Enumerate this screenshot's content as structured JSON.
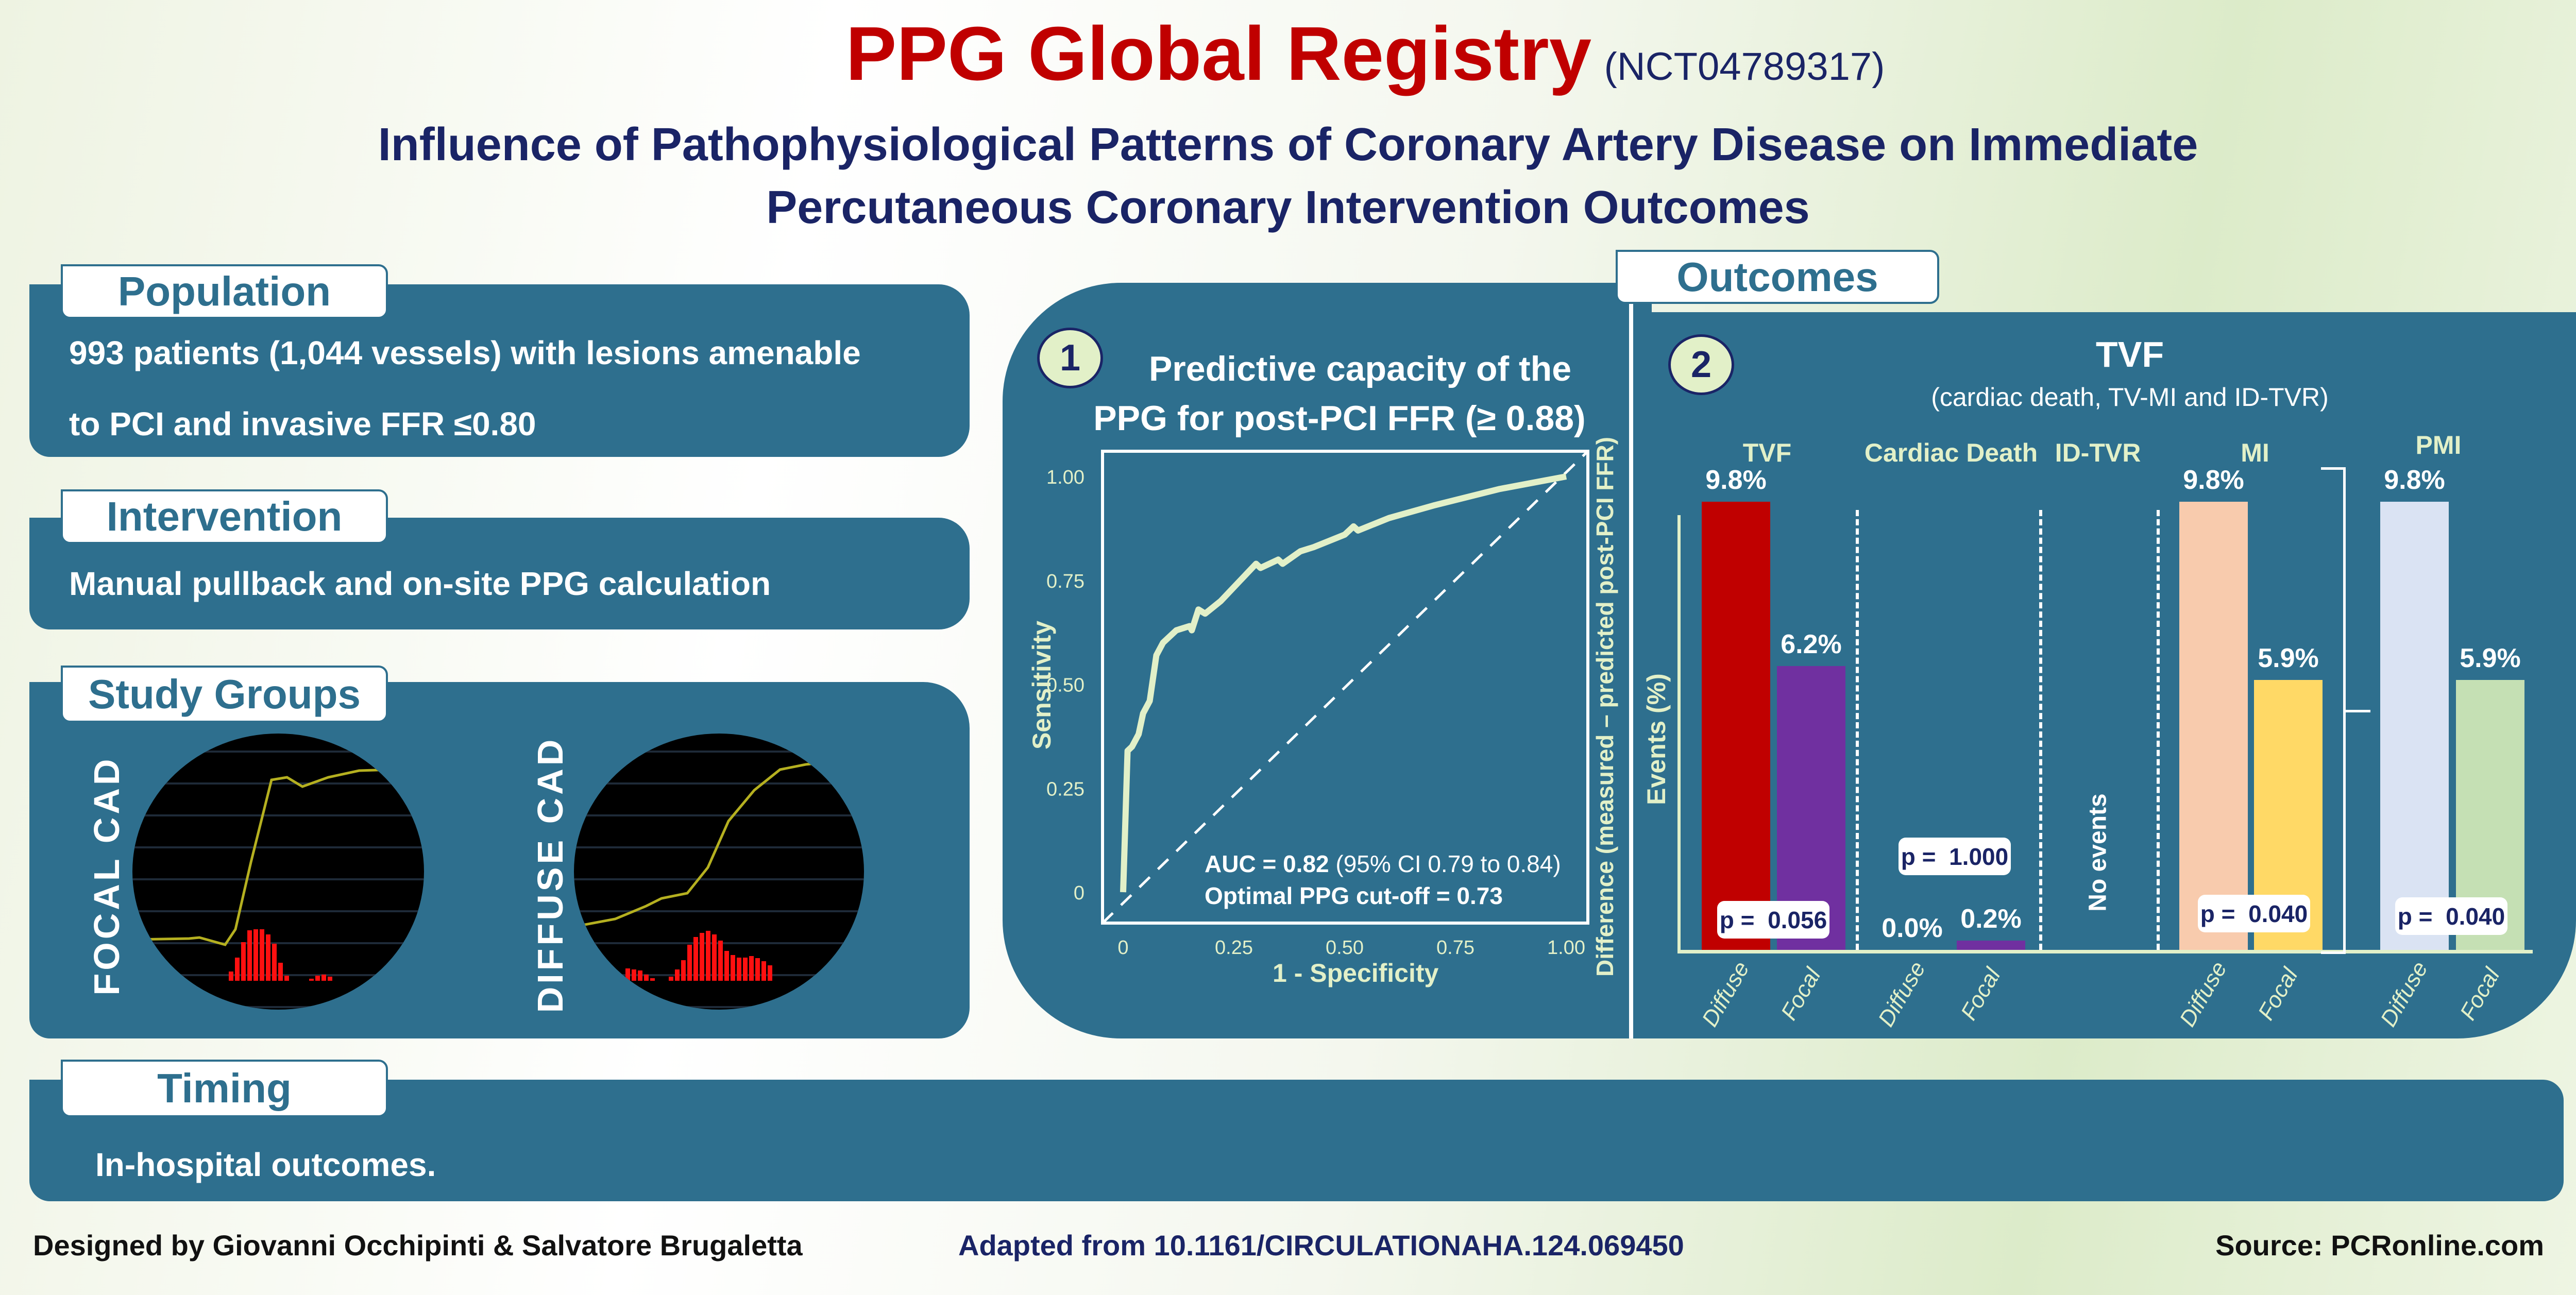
{
  "header": {
    "title": "PPG Global Registry",
    "trial_id": "(NCT04789317)",
    "subtitle_line1": "Influence of Pathophysiological Patterns of Coronary Artery Disease on Immediate",
    "subtitle_line2": "Percutaneous Coronary Intervention Outcomes"
  },
  "population": {
    "label": "Population",
    "line1": "993 patients (1,044 vessels) with lesions amenable",
    "line2": "to PCI and invasive FFR ≤0.80"
  },
  "intervention": {
    "label": "Intervention",
    "text": "Manual pullback and on-site PPG calculation"
  },
  "study_groups": {
    "label": "Study Groups",
    "focal": "FOCAL CAD",
    "diffuse": "DIFFUSE CAD"
  },
  "timing": {
    "label": "Timing",
    "text": "In-hospital outcomes."
  },
  "outcomes": {
    "label": "Outcomes"
  },
  "roc_panel": {
    "number": "1",
    "title_line1": "Predictive capacity of the",
    "title_line2": "PPG for post-PCI FFR (≥ 0.88)"
  },
  "bar_panel": {
    "number": "2"
  },
  "chart_data": [
    {
      "type": "line",
      "title": "Predictive capacity of the PPG for post-PCI FFR (≥ 0.88)",
      "xlabel": "1 - Specificity",
      "ylabel": "Sensitivity",
      "y2label": "Difference (measured – predicted post-PCI FFR)",
      "x_ticks": [
        "0",
        "0.25",
        "0.50",
        "0.75",
        "1.00"
      ],
      "y_ticks": [
        "0",
        "0.25",
        "0.50",
        "0.75",
        "1.00"
      ],
      "xlim": [
        0,
        1
      ],
      "ylim": [
        0,
        1
      ],
      "series": [
        {
          "name": "ROC curve",
          "x": [
            0,
            0.01,
            0.02,
            0.035,
            0.045,
            0.06,
            0.075,
            0.09,
            0.12,
            0.15,
            0.155,
            0.17,
            0.185,
            0.22,
            0.3,
            0.31,
            0.35,
            0.36,
            0.4,
            0.43,
            0.5,
            0.52,
            0.53,
            0.6,
            0.7,
            0.85,
            0.95,
            1.0
          ],
          "y": [
            0,
            0.34,
            0.35,
            0.38,
            0.43,
            0.46,
            0.57,
            0.6,
            0.63,
            0.64,
            0.63,
            0.68,
            0.67,
            0.7,
            0.79,
            0.78,
            0.8,
            0.79,
            0.82,
            0.83,
            0.86,
            0.88,
            0.87,
            0.9,
            0.93,
            0.97,
            0.99,
            1.0
          ]
        },
        {
          "name": "Reference",
          "x": [
            0,
            1
          ],
          "y": [
            0,
            1
          ]
        }
      ],
      "annotations": {
        "auc_label": "AUC = ",
        "auc_value": "0.82",
        "auc_ci": "(95% CI 0.79 to 0.84)",
        "cutoff": "Optimal PPG cut-off = 0.73"
      }
    },
    {
      "type": "bar",
      "title": "TVF",
      "subtitle": "(cardiac death, TV-MI and ID-TVR)",
      "ylabel": "Events (%)",
      "groups": [
        {
          "label": "TVF",
          "p": "p =  0.056",
          "bars": [
            {
              "category": "Diffuse",
              "value": 9.8,
              "label": "9.8%",
              "color": "#c00000"
            },
            {
              "category": "Focal",
              "value": 6.2,
              "label": "6.2%",
              "color": "#7030a0"
            }
          ]
        },
        {
          "label": "Cardiac Death",
          "p": "p =  1.000",
          "bars": [
            {
              "category": "Diffuse",
              "value": 0.0,
              "label": "0.0%",
              "color": "#7030a0"
            },
            {
              "category": "Focal",
              "value": 0.2,
              "label": "0.2%",
              "color": "#7030a0"
            }
          ]
        },
        {
          "label": "ID-TVR",
          "note": "No events",
          "bars": []
        },
        {
          "label": "MI",
          "p": "p =  0.040",
          "bars": [
            {
              "category": "Diffuse",
              "value": 9.8,
              "label": "9.8%",
              "color": "#f8cbad"
            },
            {
              "category": "Focal",
              "value": 5.9,
              "label": "5.9%",
              "color": "#ffd966"
            }
          ]
        },
        {
          "label": "PMI",
          "p": "p =  0.040",
          "bars": [
            {
              "category": "Diffuse",
              "value": 9.8,
              "label": "9.8%",
              "color": "#dae3f3"
            },
            {
              "category": "Focal",
              "value": 5.9,
              "label": "5.9%",
              "color": "#c5e0b4"
            }
          ]
        }
      ]
    }
  ],
  "footer": {
    "designed_by": "Designed by Giovanni Occhipinti & Salvatore Brugaletta",
    "adapted": "Adapted from 10.1161/CIRCULATIONAHA.124.069450",
    "source": "Source: PCRonline.com"
  },
  "colors": {
    "panel": "#2e6f8e",
    "title_red": "#c00000",
    "navy": "#1a2466",
    "accent_green": "#e2f0c8"
  }
}
